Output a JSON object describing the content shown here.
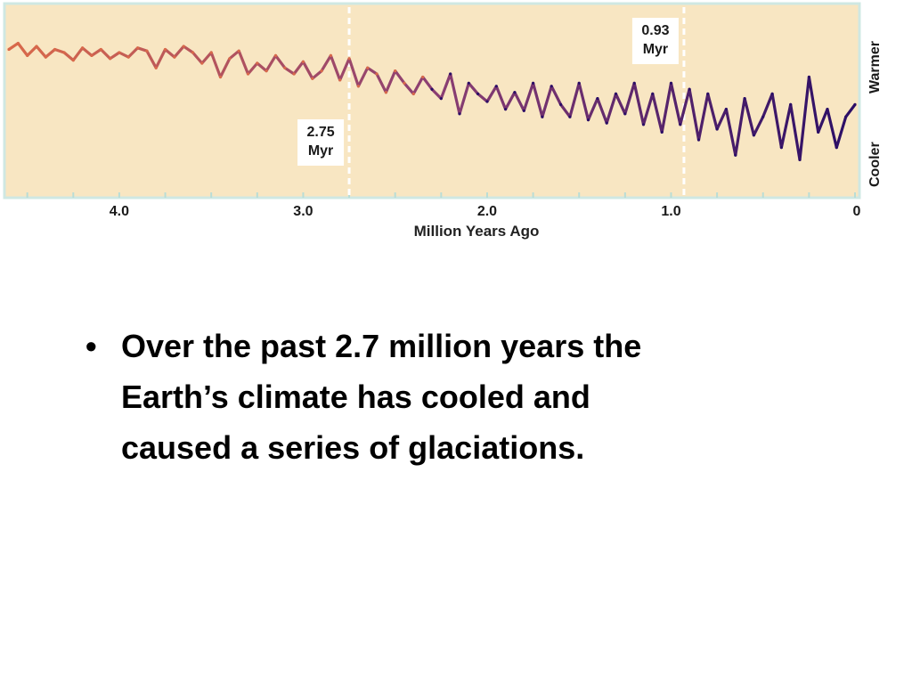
{
  "chart_data": {
    "type": "line",
    "xlabel": "Million Years Ago",
    "x_ticks": [
      "4.0",
      "3.0",
      "2.0",
      "1.0",
      "0"
    ],
    "x_tick_values": [
      4.0,
      3.0,
      2.0,
      1.0,
      0.0
    ],
    "xlim": [
      4.6,
      0.0
    ],
    "x_reversed": true,
    "y_scale_labels": {
      "top": "Warmer",
      "bottom": "Cooler"
    },
    "ylim": [
      0,
      100
    ],
    "markers": [
      {
        "x": 2.75,
        "label_line1": "2.75",
        "label_line2": "Myr"
      },
      {
        "x": 0.93,
        "label_line1": "0.93",
        "label_line2": "Myr"
      }
    ],
    "series": [
      {
        "x": [
          4.6,
          4.55,
          4.5,
          4.45,
          4.4,
          4.35,
          4.3,
          4.25,
          4.2,
          4.15,
          4.1,
          4.05,
          4.0,
          3.95,
          3.9,
          3.85,
          3.8,
          3.75,
          3.7,
          3.65,
          3.6,
          3.55,
          3.5,
          3.45,
          3.4,
          3.35,
          3.3,
          3.25,
          3.2,
          3.15,
          3.1,
          3.05,
          3.0,
          2.95,
          2.9,
          2.85,
          2.8,
          2.75,
          2.7,
          2.65,
          2.6,
          2.55,
          2.5,
          2.45,
          2.4,
          2.35,
          2.3,
          2.25,
          2.2,
          2.15,
          2.1,
          2.05,
          2.0,
          1.95,
          1.9,
          1.85,
          1.8,
          1.75,
          1.7,
          1.65,
          1.6,
          1.55,
          1.5,
          1.45,
          1.4,
          1.35,
          1.3,
          1.25,
          1.2,
          1.15,
          1.1,
          1.05,
          1.0,
          0.95,
          0.9,
          0.85,
          0.8,
          0.75,
          0.7,
          0.65,
          0.6,
          0.55,
          0.5,
          0.45,
          0.4,
          0.35,
          0.3,
          0.25,
          0.2,
          0.15,
          0.1,
          0.05,
          0.0
        ],
        "y": [
          84,
          88,
          80,
          86,
          79,
          84,
          82,
          77,
          85,
          80,
          84,
          78,
          82,
          79,
          85,
          83,
          72,
          84,
          79,
          86,
          82,
          75,
          82,
          66,
          78,
          83,
          68,
          75,
          70,
          80,
          72,
          68,
          76,
          65,
          70,
          80,
          64,
          78,
          60,
          72,
          68,
          56,
          70,
          62,
          55,
          66,
          58,
          52,
          68,
          42,
          62,
          55,
          50,
          60,
          45,
          56,
          44,
          62,
          40,
          60,
          48,
          40,
          62,
          38,
          52,
          36,
          55,
          42,
          62,
          35,
          55,
          30,
          62,
          35,
          58,
          25,
          55,
          32,
          45,
          15,
          52,
          28,
          40,
          55,
          20,
          48,
          12,
          66,
          30,
          45,
          20,
          40,
          48
        ]
      }
    ]
  },
  "bullets": [
    {
      "dot": "•",
      "lines": [
        "Over the past 2.7 million years the",
        "Earth’s climate has cooled and",
        "caused a series of glaciations."
      ]
    }
  ],
  "colors": {
    "plot_background": "#f8e6c2",
    "frame": "#cfe8e3",
    "line_warm": "#d9694a",
    "line_mid": "#8c3f72",
    "line_cool": "#2b0e66",
    "marker_line": "#ffffff"
  }
}
